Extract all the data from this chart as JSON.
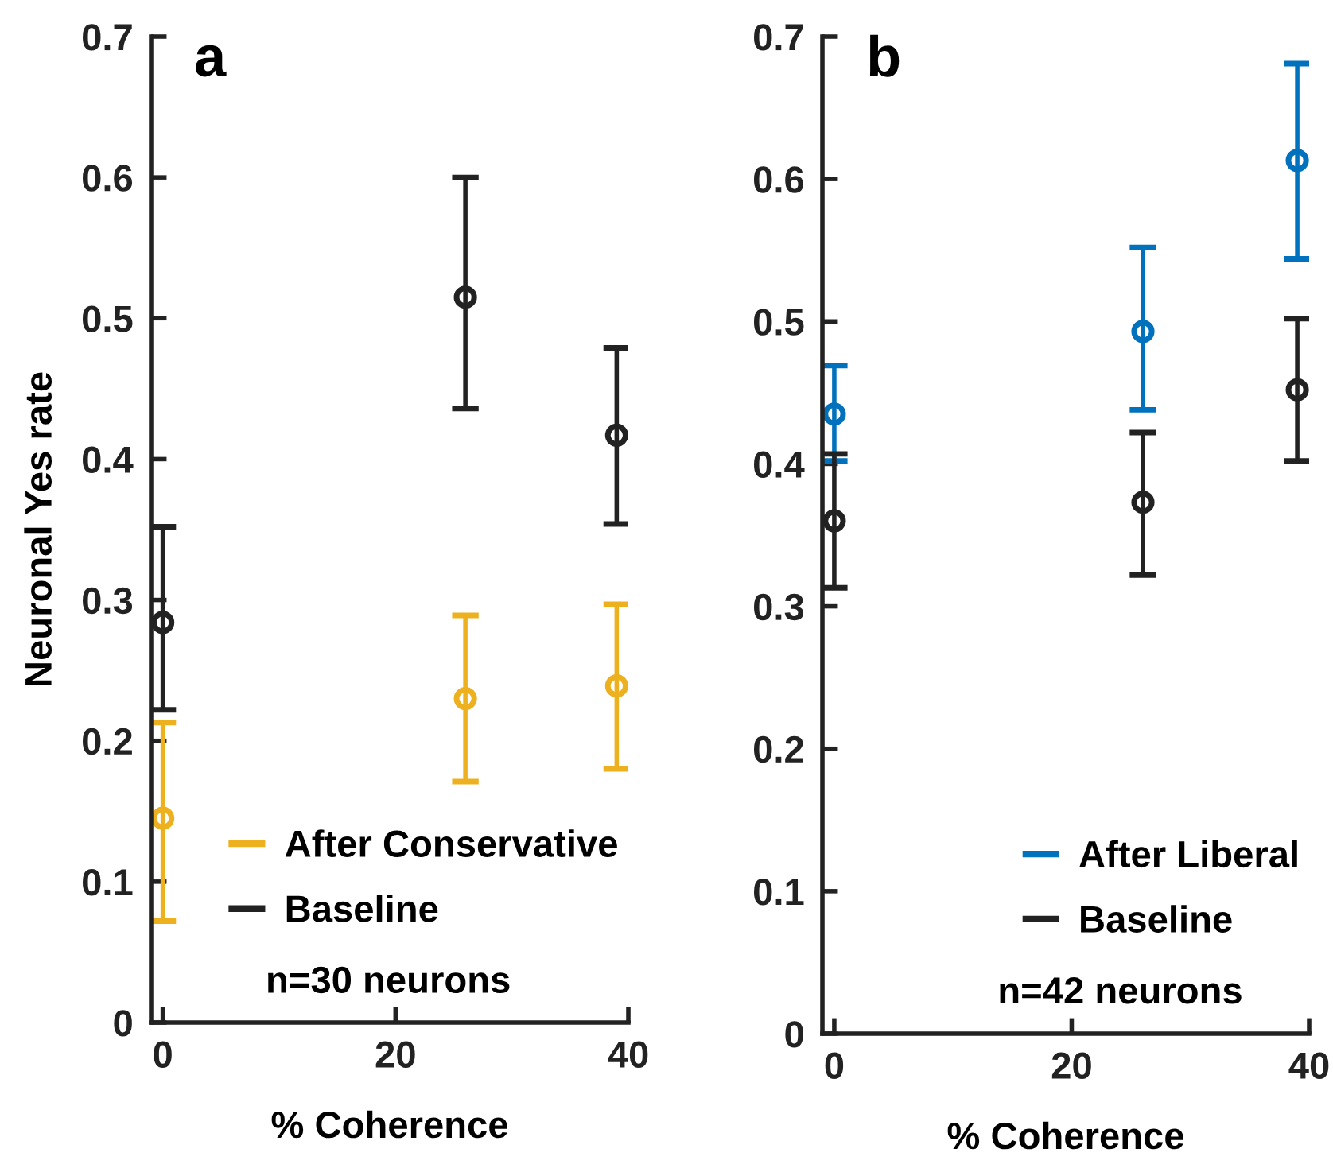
{
  "chart_data": [
    {
      "type": "scatter",
      "x": [
        0,
        26,
        39
      ],
      "xlabel": "% Coherence",
      "ylabel": "Neuronal Yes rate",
      "xlim": [
        -1,
        40
      ],
      "xticks": [
        0,
        20,
        40
      ],
      "ylim": [
        0,
        0.7
      ],
      "yticks": [
        0,
        0.1,
        0.2,
        0.3,
        0.4,
        0.5,
        0.6,
        0.7
      ],
      "marker": "circle",
      "grid": false,
      "legend": "bottom right",
      "series": [
        {
          "name": "After Conservative",
          "color": "#edb120",
          "values": [
            0.145,
            0.23,
            0.239
          ],
          "errors": [
            [
              0.072,
              0.213
            ],
            [
              0.171,
              0.289
            ],
            [
              0.18,
              0.297
            ]
          ]
        },
        {
          "name": "Baseline",
          "color": "#222222",
          "values": [
            0.284,
            0.515,
            0.417
          ],
          "errors": [
            [
              0.222,
              0.352
            ],
            [
              0.436,
              0.6
            ],
            [
              0.354,
              0.479
            ]
          ]
        }
      ],
      "annotations": [
        "a",
        "n=30 neurons"
      ]
    },
    {
      "type": "scatter",
      "x": [
        0,
        26,
        39
      ],
      "xlabel": "% Coherence",
      "xlim": [
        -1,
        40
      ],
      "xticks": [
        0,
        20,
        40
      ],
      "ylim": [
        0,
        0.7
      ],
      "yticks": [
        0,
        0.1,
        0.2,
        0.3,
        0.4,
        0.5,
        0.6,
        0.7
      ],
      "marker": "circle",
      "grid": false,
      "legend": "bottom right",
      "series": [
        {
          "name": "After Liberal",
          "color": "#0072bd",
          "values": [
            0.435,
            0.493,
            0.613
          ],
          "errors": [
            [
              0.402,
              0.469
            ],
            [
              0.438,
              0.552
            ],
            [
              0.544,
              0.681
            ]
          ]
        },
        {
          "name": "Baseline",
          "color": "#222222",
          "values": [
            0.36,
            0.373,
            0.452
          ],
          "errors": [
            [
              0.313,
              0.407
            ],
            [
              0.322,
              0.422
            ],
            [
              0.402,
              0.502
            ]
          ]
        }
      ],
      "annotations": [
        "b",
        "n=42 neurons"
      ]
    }
  ]
}
